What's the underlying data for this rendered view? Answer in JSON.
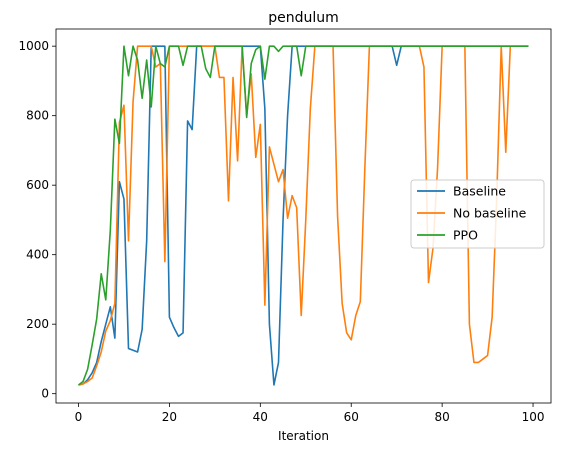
{
  "chart_data": {
    "type": "line",
    "title": "pendulum",
    "xlabel": "Iteration",
    "ylabel": "",
    "xlim": [
      -4.95,
      103.95
    ],
    "ylim": [
      -26.8,
      1049.4
    ],
    "xticks": [
      0,
      20,
      40,
      60,
      80,
      100
    ],
    "yticks": [
      0,
      200,
      400,
      600,
      800,
      1000
    ],
    "grid": false,
    "legend_position": "center-right",
    "series": [
      {
        "name": "Baseline",
        "color": "#1f77b4",
        "x": [
          0,
          1,
          2,
          3,
          4,
          5,
          6,
          7,
          8,
          9,
          10,
          11,
          12,
          13,
          14,
          15,
          16,
          17,
          18,
          19,
          20,
          21,
          22,
          23,
          24,
          25,
          26,
          27,
          28,
          29,
          30,
          31,
          32,
          33,
          34,
          35,
          36,
          37,
          38,
          39,
          40,
          41,
          42,
          43,
          44,
          45,
          46,
          47,
          48,
          49,
          50,
          51,
          52,
          53,
          54,
          55,
          56,
          57,
          58,
          59,
          60,
          61,
          62,
          63,
          64,
          65,
          66,
          67,
          68,
          69,
          70,
          71,
          72,
          73,
          74,
          75,
          76,
          77,
          78,
          79,
          80,
          81,
          82,
          83,
          84,
          85,
          86,
          87,
          88,
          89,
          90,
          91,
          92,
          93,
          94,
          95,
          96,
          97,
          98,
          99
        ],
        "y": [
          25,
          28,
          40,
          60,
          90,
          150,
          200,
          250,
          160,
          610,
          560,
          130,
          125,
          120,
          185,
          440,
          1000,
          1000,
          1000,
          1000,
          220,
          190,
          165,
          175,
          785,
          760,
          1000,
          1000,
          1000,
          1000,
          1000,
          1000,
          1000,
          1000,
          1000,
          1000,
          1000,
          1000,
          1000,
          1000,
          1000,
          820,
          200,
          25,
          90,
          500,
          800,
          1000,
          1000,
          1000,
          1000,
          1000,
          1000,
          1000,
          1000,
          1000,
          1000,
          1000,
          1000,
          1000,
          1000,
          1000,
          1000,
          1000,
          1000,
          1000,
          1000,
          1000,
          1000,
          1000,
          945,
          1000,
          1000,
          1000,
          1000,
          1000,
          1000,
          1000,
          1000,
          1000,
          1000,
          1000,
          1000,
          1000,
          1000,
          1000,
          1000,
          1000,
          1000,
          1000,
          1000,
          1000,
          1000,
          1000,
          1000,
          1000,
          1000,
          1000,
          1000,
          1000
        ]
      },
      {
        "name": "No baseline",
        "color": "#ff7f0e",
        "x": [
          0,
          1,
          2,
          3,
          4,
          5,
          6,
          7,
          8,
          9,
          10,
          11,
          12,
          13,
          14,
          15,
          16,
          17,
          18,
          19,
          20,
          21,
          22,
          23,
          24,
          25,
          26,
          27,
          28,
          29,
          30,
          31,
          32,
          33,
          34,
          35,
          36,
          37,
          38,
          39,
          40,
          41,
          42,
          43,
          44,
          45,
          46,
          47,
          48,
          49,
          50,
          51,
          52,
          53,
          54,
          55,
          56,
          57,
          58,
          59,
          60,
          61,
          62,
          63,
          64,
          65,
          66,
          67,
          68,
          69,
          70,
          71,
          72,
          73,
          74,
          75,
          76,
          77,
          78,
          79,
          80,
          81,
          82,
          83,
          84,
          85,
          86,
          87,
          88,
          89,
          90,
          91,
          92,
          93,
          94,
          95
        ],
        "y": [
          25,
          28,
          35,
          45,
          80,
          120,
          180,
          210,
          260,
          780,
          830,
          440,
          840,
          1000,
          1000,
          1000,
          1000,
          940,
          950,
          380,
          1000,
          1000,
          1000,
          1000,
          1000,
          1000,
          1000,
          1000,
          1000,
          1000,
          1000,
          910,
          910,
          555,
          910,
          670,
          1000,
          800,
          920,
          680,
          775,
          255,
          710,
          660,
          610,
          645,
          505,
          570,
          535,
          225,
          500,
          820,
          1000,
          1000,
          1000,
          1000,
          1000,
          510,
          260,
          175,
          155,
          225,
          265,
          650,
          1000,
          1000,
          1000,
          1000,
          1000,
          1000,
          1000,
          1000,
          1000,
          1000,
          1000,
          1000,
          940,
          320,
          420,
          650,
          1000,
          1000,
          1000,
          1000,
          1000,
          1000,
          200,
          90,
          90,
          100,
          110,
          220,
          560,
          1000,
          695,
          1000
        ]
      },
      {
        "name": "PPO",
        "color": "#2ca02c",
        "x": [
          0,
          1,
          2,
          3,
          4,
          5,
          6,
          7,
          8,
          9,
          10,
          11,
          12,
          13,
          14,
          15,
          16,
          17,
          18,
          19,
          20,
          21,
          22,
          23,
          24,
          25,
          26,
          27,
          28,
          29,
          30,
          31,
          32,
          33,
          34,
          35,
          36,
          37,
          38,
          39,
          40,
          41,
          42,
          43,
          44,
          45,
          46,
          47,
          48,
          49,
          50,
          51,
          52,
          53,
          54,
          55,
          56,
          57,
          58,
          59,
          60,
          61,
          62,
          63,
          64,
          65,
          66,
          67,
          68,
          69,
          70,
          71,
          72,
          73,
          74,
          75,
          76,
          77,
          78,
          79,
          80,
          81,
          82,
          83,
          84,
          85,
          86,
          87,
          88,
          89,
          90,
          91,
          92,
          93,
          94,
          95,
          96,
          97,
          98,
          99
        ],
        "y": [
          25,
          35,
          70,
          140,
          215,
          345,
          270,
          470,
          790,
          720,
          1000,
          915,
          1000,
          960,
          850,
          960,
          825,
          1000,
          950,
          940,
          1000,
          1000,
          1000,
          945,
          1000,
          1000,
          1000,
          1000,
          935,
          910,
          1000,
          1000,
          1000,
          1000,
          1000,
          1000,
          1000,
          795,
          950,
          990,
          1000,
          905,
          1000,
          1000,
          985,
          1000,
          1000,
          1000,
          1000,
          915,
          1000,
          1000,
          1000,
          1000,
          1000,
          1000,
          1000,
          1000,
          1000,
          1000,
          1000,
          1000,
          1000,
          1000,
          1000,
          1000,
          1000,
          1000,
          1000,
          1000,
          1000,
          1000,
          1000,
          1000,
          1000,
          1000,
          1000,
          1000,
          1000,
          1000,
          1000,
          1000,
          1000,
          1000,
          1000,
          1000,
          1000,
          1000,
          1000,
          1000,
          1000,
          1000,
          1000,
          1000,
          1000,
          1000,
          1000,
          1000,
          1000,
          1000
        ]
      }
    ]
  }
}
